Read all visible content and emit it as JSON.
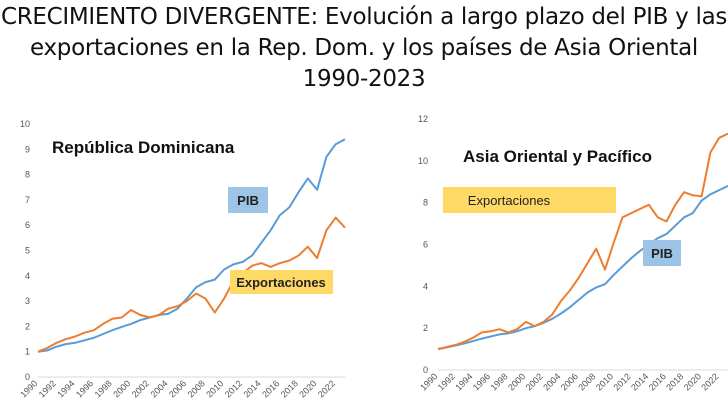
{
  "title": {
    "line1": "CRECIMIENTO DIVERGENTE: Evolución a largo plazo del PIB y las",
    "line2": "exportaciones en la Rep. Dom. y los países de Asia Oriental",
    "line3": "1990-2023"
  },
  "colors": {
    "pib": "#5b9bd5",
    "exportaciones": "#ed7d31",
    "pib_box": "#9dc3e6",
    "exp_box": "#ffd966",
    "grid": "#d9d9d9"
  },
  "chart_data": [
    {
      "type": "line",
      "title": "República Dominicana",
      "x": [
        1990,
        1991,
        1992,
        1993,
        1994,
        1995,
        1996,
        1997,
        1998,
        1999,
        2000,
        2001,
        2002,
        2003,
        2004,
        2005,
        2006,
        2007,
        2008,
        2009,
        2010,
        2011,
        2012,
        2013,
        2014,
        2015,
        2016,
        2017,
        2018,
        2019,
        2020,
        2021,
        2022,
        2023
      ],
      "x_ticks": [
        "1990",
        "1992",
        "1994",
        "1996",
        "1998",
        "2000",
        "2002",
        "2004",
        "2006",
        "2008",
        "2010",
        "2012",
        "2014",
        "2016",
        "2018",
        "2020",
        "2022"
      ],
      "ylim": [
        0,
        10
      ],
      "y_ticks": [
        "0",
        "1",
        "2",
        "3",
        "4",
        "5",
        "6",
        "7",
        "8",
        "9",
        "10"
      ],
      "grid": false,
      "series": [
        {
          "name": "PIB",
          "values": [
            1.0,
            1.05,
            1.2,
            1.3,
            1.35,
            1.45,
            1.55,
            1.7,
            1.85,
            1.98,
            2.1,
            2.25,
            2.35,
            2.45,
            2.5,
            2.7,
            3.1,
            3.55,
            3.75,
            3.85,
            4.25,
            4.45,
            4.55,
            4.8,
            5.3,
            5.8,
            6.4,
            6.7,
            7.3,
            7.85,
            7.4,
            8.7,
            9.2,
            9.4
          ]
        },
        {
          "name": "Exportaciones",
          "values": [
            1.0,
            1.15,
            1.35,
            1.5,
            1.6,
            1.75,
            1.85,
            2.1,
            2.3,
            2.35,
            2.65,
            2.45,
            2.35,
            2.45,
            2.7,
            2.8,
            3.0,
            3.3,
            3.1,
            2.55,
            3.1,
            3.8,
            4.1,
            4.4,
            4.5,
            4.35,
            4.5,
            4.6,
            4.8,
            5.15,
            4.7,
            5.8,
            6.3,
            5.9
          ]
        }
      ],
      "labels": {
        "pib": "PIB",
        "exportaciones": "Exportaciones"
      }
    },
    {
      "type": "line",
      "title": "Asia Oriental y Pacífico",
      "x": [
        1990,
        1991,
        1992,
        1993,
        1994,
        1995,
        1996,
        1997,
        1998,
        1999,
        2000,
        2001,
        2002,
        2003,
        2004,
        2005,
        2006,
        2007,
        2008,
        2009,
        2010,
        2011,
        2012,
        2013,
        2014,
        2015,
        2016,
        2017,
        2018,
        2019,
        2020,
        2021,
        2022,
        2023
      ],
      "x_ticks": [
        "1990",
        "1992",
        "1994",
        "1996",
        "1998",
        "2000",
        "2002",
        "2004",
        "2006",
        "2008",
        "2010",
        "2012",
        "2014",
        "2016",
        "2018",
        "2020",
        "2022"
      ],
      "ylim": [
        0,
        12
      ],
      "y_ticks": [
        "0",
        "2",
        "4",
        "6",
        "8",
        "10",
        "12"
      ],
      "grid": false,
      "series": [
        {
          "name": "PIB",
          "values": [
            1.0,
            1.08,
            1.17,
            1.27,
            1.38,
            1.5,
            1.6,
            1.7,
            1.75,
            1.85,
            2.0,
            2.1,
            2.25,
            2.45,
            2.7,
            3.0,
            3.35,
            3.7,
            3.95,
            4.1,
            4.55,
            4.95,
            5.35,
            5.7,
            6.0,
            6.3,
            6.5,
            6.9,
            7.3,
            7.5,
            8.1,
            8.4,
            8.6,
            8.8
          ]
        },
        {
          "name": "Exportaciones",
          "values": [
            1.0,
            1.1,
            1.2,
            1.35,
            1.55,
            1.8,
            1.85,
            1.95,
            1.8,
            1.95,
            2.3,
            2.1,
            2.3,
            2.65,
            3.3,
            3.8,
            4.4,
            5.1,
            5.8,
            4.8,
            6.1,
            7.3,
            7.5,
            7.7,
            7.9,
            7.3,
            7.1,
            7.9,
            8.5,
            8.35,
            8.3,
            10.4,
            11.1,
            11.3
          ]
        }
      ],
      "labels": {
        "pib": "PIB",
        "exportaciones": "Exportaciones"
      }
    }
  ]
}
